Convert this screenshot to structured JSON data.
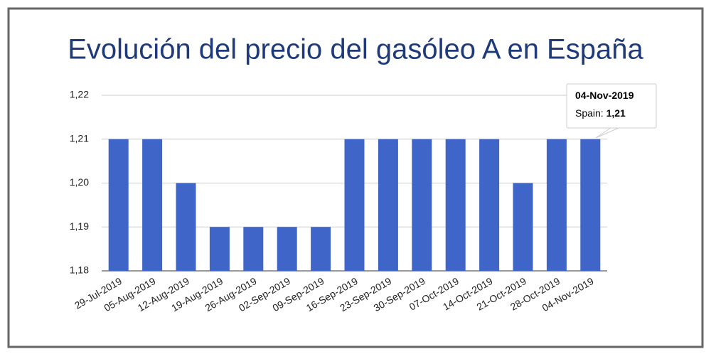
{
  "chart_data": {
    "type": "bar",
    "title": "Evolución del precio del gasóleo A en España",
    "categories": [
      "29-Jul-2019",
      "05-Aug-2019",
      "12-Aug-2019",
      "19-Aug-2019",
      "26-Aug-2019",
      "02-Sep-2019",
      "09-Sep-2019",
      "16-Sep-2019",
      "23-Sep-2019",
      "30-Sep-2019",
      "07-Oct-2019",
      "14-Oct-2019",
      "21-Oct-2019",
      "28-Oct-2019",
      "04-Nov-2019"
    ],
    "series": [
      {
        "name": "Spain",
        "color": "#3f65c8",
        "values": [
          1.21,
          1.21,
          1.2,
          1.19,
          1.19,
          1.19,
          1.19,
          1.21,
          1.21,
          1.21,
          1.21,
          1.21,
          1.2,
          1.21,
          1.21
        ]
      }
    ],
    "ylim": [
      1.18,
      1.22
    ],
    "yticks": [
      {
        "value": 1.18,
        "label": "1,18"
      },
      {
        "value": 1.19,
        "label": "1,19"
      },
      {
        "value": 1.2,
        "label": "1,20"
      },
      {
        "value": 1.21,
        "label": "1,21"
      },
      {
        "value": 1.22,
        "label": "1,22"
      }
    ],
    "grid": true,
    "tooltip": {
      "title": "04-Nov-2019",
      "text": "Spain:",
      "value": "1,21"
    }
  }
}
